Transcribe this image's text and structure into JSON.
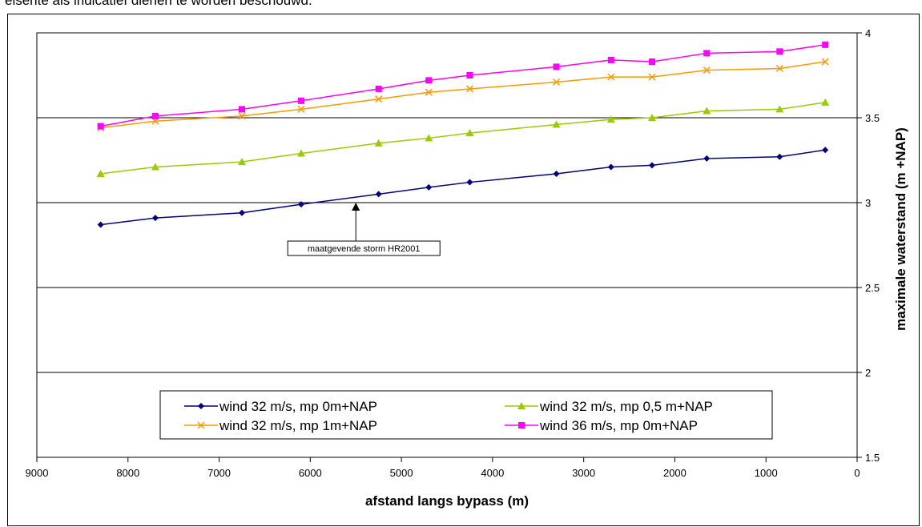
{
  "page": {
    "top_text": "elsente als indicatief dienen te worden beschouwd."
  },
  "chart_data": {
    "type": "line",
    "xlabel": "afstand langs bypass (m)",
    "ylabel": "maximale waterstand (m +NAP)",
    "x_reversed": true,
    "xlim": [
      0,
      9000
    ],
    "ylim": [
      1.5,
      4
    ],
    "x_ticks": [
      0,
      1000,
      2000,
      3000,
      4000,
      5000,
      6000,
      7000,
      8000,
      9000
    ],
    "x_tick_labels": [
      "0",
      "1000",
      "2000",
      "3000",
      "4000",
      "5000",
      "6000",
      "7000",
      "8000",
      "9000"
    ],
    "y_ticks": [
      1.5,
      2,
      2.5,
      3,
      3.5,
      4
    ],
    "y_tick_labels": [
      "1.5",
      "2",
      "2.5",
      "3",
      "3.5",
      "4"
    ],
    "gridlines": "horizontal",
    "y_axis_side": "right",
    "legend_position": "bottom-center",
    "x": [
      8300,
      7700,
      6750,
      6100,
      5250,
      4700,
      4250,
      3300,
      2700,
      2250,
      1650,
      850,
      350
    ],
    "series": [
      {
        "name": "wind 32 m/s, mp 0m+NAP",
        "color": "#000080",
        "marker": "diamond",
        "values": [
          2.87,
          2.91,
          2.94,
          2.99,
          3.05,
          3.09,
          3.12,
          3.17,
          3.21,
          3.22,
          3.26,
          3.27,
          3.31
        ]
      },
      {
        "name": "wind 32 m/s, mp 0,5 m+NAP",
        "color": "#99cc00",
        "marker": "triangle",
        "values": [
          3.17,
          3.21,
          3.24,
          3.29,
          3.35,
          3.38,
          3.41,
          3.46,
          3.49,
          3.5,
          3.54,
          3.55,
          3.59
        ]
      },
      {
        "name": "wind 32 m/s, mp 1m+NAP",
        "color": "#ff9900",
        "marker": "x",
        "values": [
          3.44,
          3.48,
          3.51,
          3.55,
          3.61,
          3.65,
          3.67,
          3.71,
          3.74,
          3.74,
          3.78,
          3.79,
          3.83
        ]
      },
      {
        "name": "wind 36 m/s, mp 0m+NAP",
        "color": "#ff00ff",
        "marker": "square",
        "values": [
          3.45,
          3.51,
          3.55,
          3.6,
          3.67,
          3.72,
          3.75,
          3.8,
          3.84,
          3.83,
          3.88,
          3.89,
          3.93
        ]
      }
    ],
    "annotation": {
      "text": "maatgevende storm HR2001",
      "x": 5500,
      "y": 3.0
    }
  }
}
